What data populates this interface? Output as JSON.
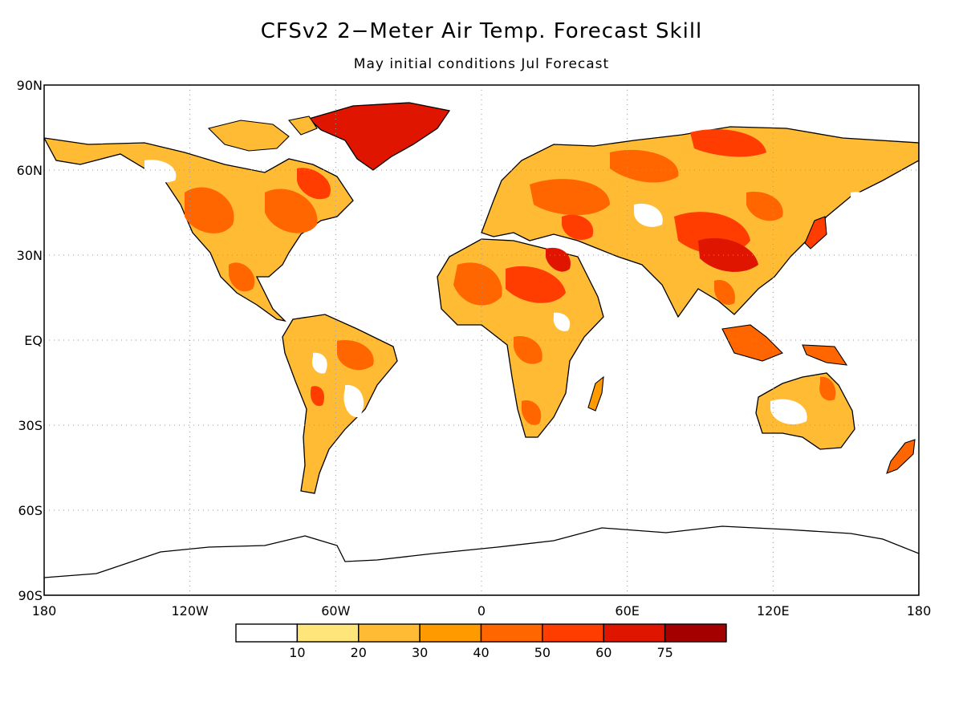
{
  "title": "CFSv2 2−Meter Air Temp. Forecast Skill",
  "subtitle": "May initial conditions   Jul Forecast",
  "map": {
    "lat_labels": [
      "90N",
      "60N",
      "30N",
      "EQ",
      "30S",
      "60S",
      "90S"
    ],
    "lon_labels": [
      "180",
      "120W",
      "60W",
      "0",
      "60E",
      "120E",
      "180"
    ],
    "lat_values": [
      90,
      60,
      30,
      0,
      -30,
      -60,
      -90
    ],
    "lon_values": [
      -180,
      -120,
      -60,
      0,
      60,
      120,
      180
    ],
    "grid": true
  },
  "colorbar": {
    "colors": [
      "#ffffff",
      "#ffe57a",
      "#ffbb33",
      "#ff9a00",
      "#ff6600",
      "#ff3d00",
      "#e01500",
      "#a50000"
    ],
    "tick_labels": [
      "10",
      "20",
      "30",
      "40",
      "50",
      "60",
      "75"
    ],
    "thresholds": [
      10,
      20,
      30,
      40,
      50,
      60,
      75
    ]
  }
}
